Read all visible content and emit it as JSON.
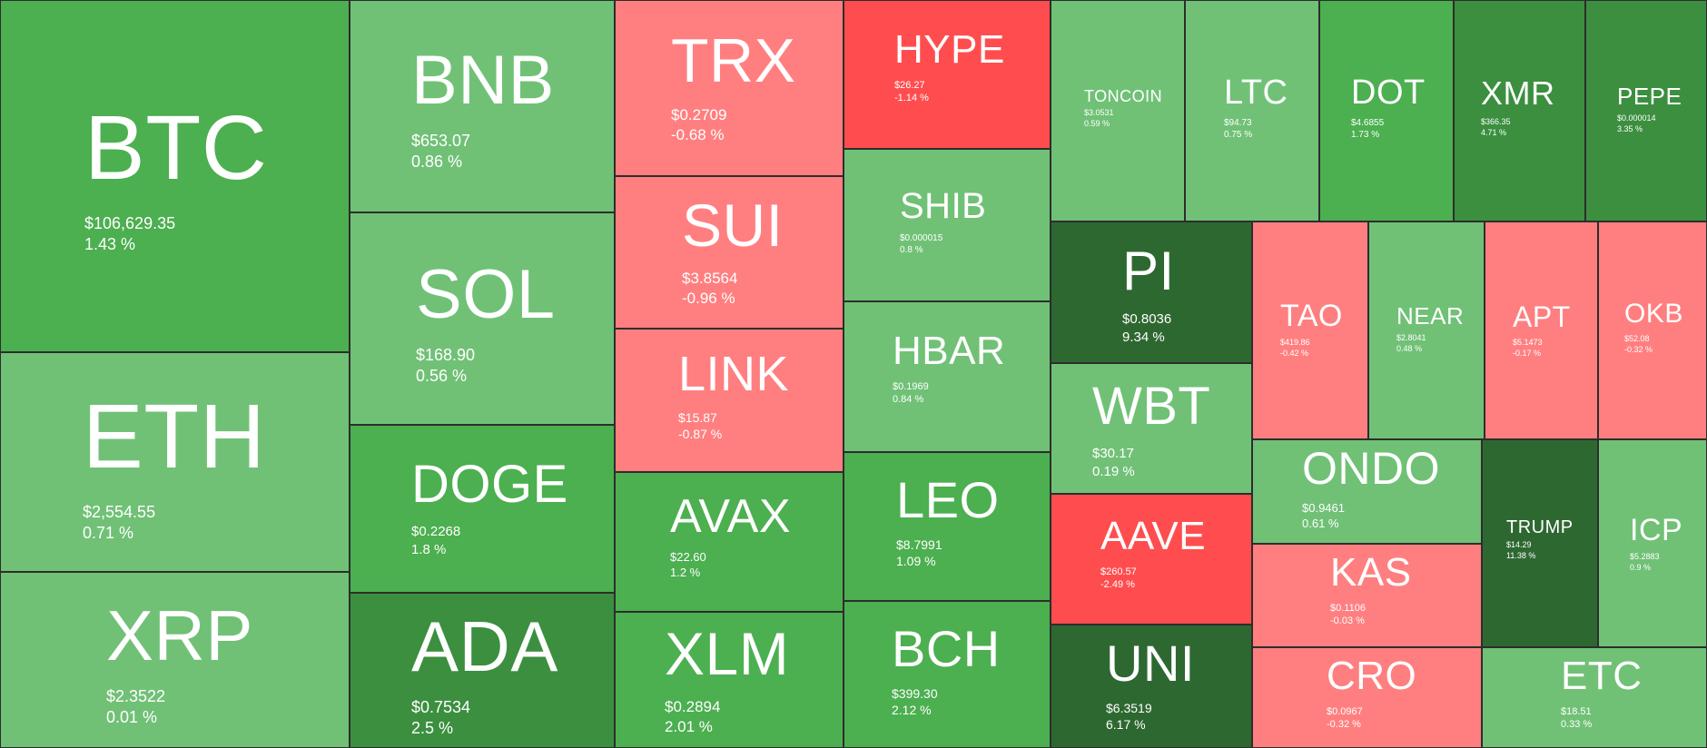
{
  "colors": {
    "green_light": "#70c176",
    "green": "#4caf50",
    "green_dark": "#3b8f3f",
    "green_darkest": "#2e6831",
    "red_light": "#ff7f80",
    "red": "#ff4d4f"
  },
  "tiles": [
    {
      "symbol": "BTC",
      "price": "$106,629.35",
      "change": "1.43 %",
      "tone": "green"
    },
    {
      "symbol": "ETH",
      "price": "$2,554.55",
      "change": "0.71 %",
      "tone": "green_light"
    },
    {
      "symbol": "XRP",
      "price": "$2.3522",
      "change": "0.01 %",
      "tone": "green_light"
    },
    {
      "symbol": "BNB",
      "price": "$653.07",
      "change": "0.86 %",
      "tone": "green_light"
    },
    {
      "symbol": "SOL",
      "price": "$168.90",
      "change": "0.56 %",
      "tone": "green_light"
    },
    {
      "symbol": "DOGE",
      "price": "$0.2268",
      "change": "1.8 %",
      "tone": "green"
    },
    {
      "symbol": "ADA",
      "price": "$0.7534",
      "change": "2.5 %",
      "tone": "green_dark"
    },
    {
      "symbol": "TRX",
      "price": "$0.2709",
      "change": "-0.68 %",
      "tone": "red_light"
    },
    {
      "symbol": "SUI",
      "price": "$3.8564",
      "change": "-0.96 %",
      "tone": "red_light"
    },
    {
      "symbol": "LINK",
      "price": "$15.87",
      "change": "-0.87 %",
      "tone": "red_light"
    },
    {
      "symbol": "AVAX",
      "price": "$22.60",
      "change": "1.2 %",
      "tone": "green"
    },
    {
      "symbol": "XLM",
      "price": "$0.2894",
      "change": "2.01 %",
      "tone": "green"
    },
    {
      "symbol": "HYPE",
      "price": "$26.27",
      "change": "-1.14 %",
      "tone": "red"
    },
    {
      "symbol": "SHIB",
      "price": "$0.000015",
      "change": "0.8 %",
      "tone": "green_light"
    },
    {
      "symbol": "HBAR",
      "price": "$0.1969",
      "change": "0.84 %",
      "tone": "green_light"
    },
    {
      "symbol": "LEO",
      "price": "$8.7991",
      "change": "1.09 %",
      "tone": "green"
    },
    {
      "symbol": "BCH",
      "price": "$399.30",
      "change": "2.12 %",
      "tone": "green"
    },
    {
      "symbol": "TONCOIN",
      "price": "$3.0531",
      "change": "0.59 %",
      "tone": "green_light"
    },
    {
      "symbol": "LTC",
      "price": "$94.73",
      "change": "0.75 %",
      "tone": "green_light"
    },
    {
      "symbol": "DOT",
      "price": "$4.6855",
      "change": "1.73 %",
      "tone": "green"
    },
    {
      "symbol": "XMR",
      "price": "$366.35",
      "change": "4.71 %",
      "tone": "green_dark"
    },
    {
      "symbol": "PEPE",
      "price": "$0.000014",
      "change": "3.35 %",
      "tone": "green_dark"
    },
    {
      "symbol": "PI",
      "price": "$0.8036",
      "change": "9.34 %",
      "tone": "green_darkest"
    },
    {
      "symbol": "WBT",
      "price": "$30.17",
      "change": "0.19 %",
      "tone": "green_light"
    },
    {
      "symbol": "AAVE",
      "price": "$260.57",
      "change": "-2.49 %",
      "tone": "red"
    },
    {
      "symbol": "UNI",
      "price": "$6.3519",
      "change": "6.17 %",
      "tone": "green_darkest"
    },
    {
      "symbol": "TAO",
      "price": "$419.86",
      "change": "-0.42 %",
      "tone": "red_light"
    },
    {
      "symbol": "NEAR",
      "price": "$2.8041",
      "change": "0.48 %",
      "tone": "green_light"
    },
    {
      "symbol": "APT",
      "price": "$5.1473",
      "change": "-0.17 %",
      "tone": "red_light"
    },
    {
      "symbol": "OKB",
      "price": "$52.08",
      "change": "-0.32 %",
      "tone": "red_light"
    },
    {
      "symbol": "ONDO",
      "price": "$0.9461",
      "change": "0.61 %",
      "tone": "green_light"
    },
    {
      "symbol": "KAS",
      "price": "$0.1106",
      "change": "-0.03 %",
      "tone": "red_light"
    },
    {
      "symbol": "CRO",
      "price": "$0.0967",
      "change": "-0.32 %",
      "tone": "red_light"
    },
    {
      "symbol": "TRUMP",
      "price": "$14.29",
      "change": "11.38 %",
      "tone": "green_darkest"
    },
    {
      "symbol": "ICP",
      "price": "$5.2883",
      "change": "0.9 %",
      "tone": "green_light"
    },
    {
      "symbol": "ETC",
      "price": "$18.51",
      "change": "0.33 %",
      "tone": "green_light"
    }
  ]
}
